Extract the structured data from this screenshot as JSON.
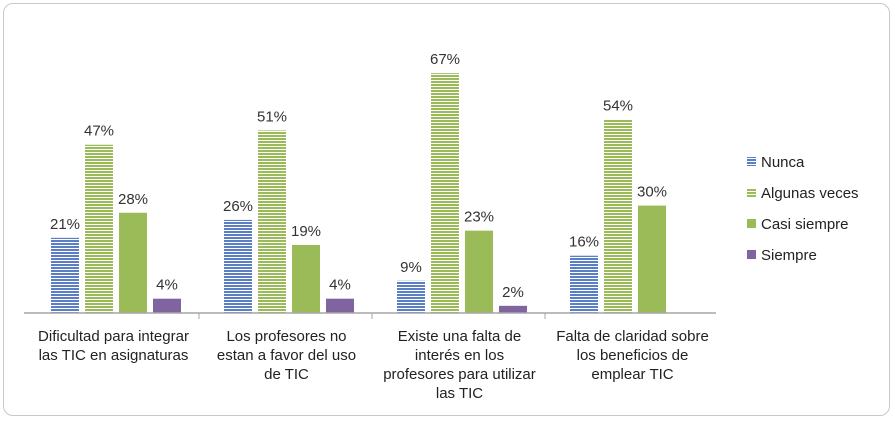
{
  "chart_data": {
    "type": "bar",
    "categories": [
      [
        "Dificultad para integrar",
        "las TIC en asignaturas"
      ],
      [
        "Los profesores no",
        "estan a favor del uso",
        "de TIC"
      ],
      [
        "Existe una falta de",
        "interés en los",
        "profesores para utilizar",
        "las TIC"
      ],
      [
        "Falta de claridad sobre",
        "los beneficios de",
        "emplear TIC"
      ]
    ],
    "series": [
      {
        "name": "Nunca",
        "values": [
          21,
          26,
          9,
          16
        ],
        "color": "#5b7fc6",
        "pattern": "hstripes-blue"
      },
      {
        "name": "Algunas veces",
        "values": [
          47,
          51,
          67,
          54
        ],
        "color": "#9bbb59",
        "pattern": "hstripes-green"
      },
      {
        "name": "Casi siempre",
        "values": [
          28,
          19,
          23,
          30
        ],
        "color": "#9bbb59",
        "pattern": "solid"
      },
      {
        "name": "Siempre",
        "values": [
          4,
          4,
          2,
          null
        ],
        "color": "#8064a2",
        "pattern": "solid"
      }
    ],
    "value_suffix": "%",
    "ylim": [
      0,
      72
    ],
    "grid": false,
    "legend_position": "right",
    "title": "",
    "xlabel": "",
    "ylabel": ""
  }
}
